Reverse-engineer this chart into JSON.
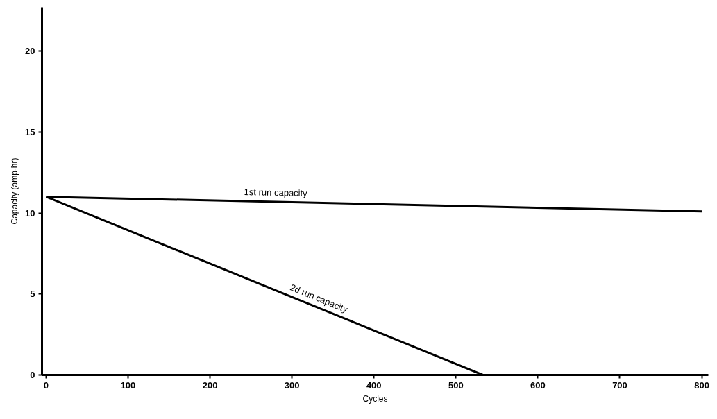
{
  "chart_data": {
    "type": "line",
    "xlabel": "Cycles",
    "ylabel": "Capacity (amp-hr)",
    "xlim": [
      -5,
      808
    ],
    "ylim": [
      0,
      22.7
    ],
    "xticks": [
      0,
      100,
      200,
      300,
      400,
      500,
      600,
      700,
      800
    ],
    "yticks": [
      0,
      5,
      10,
      15,
      20
    ],
    "grid": false,
    "marker": "none",
    "line_style": "solid",
    "series": [
      {
        "name": "1st run capacity",
        "color": "#000000",
        "x": [
          0,
          800
        ],
        "values": [
          11,
          10.1
        ]
      },
      {
        "name": "2d run capacity",
        "color": "#000000",
        "x": [
          0,
          533,
          800
        ],
        "values": [
          11,
          0,
          0
        ]
      }
    ]
  }
}
